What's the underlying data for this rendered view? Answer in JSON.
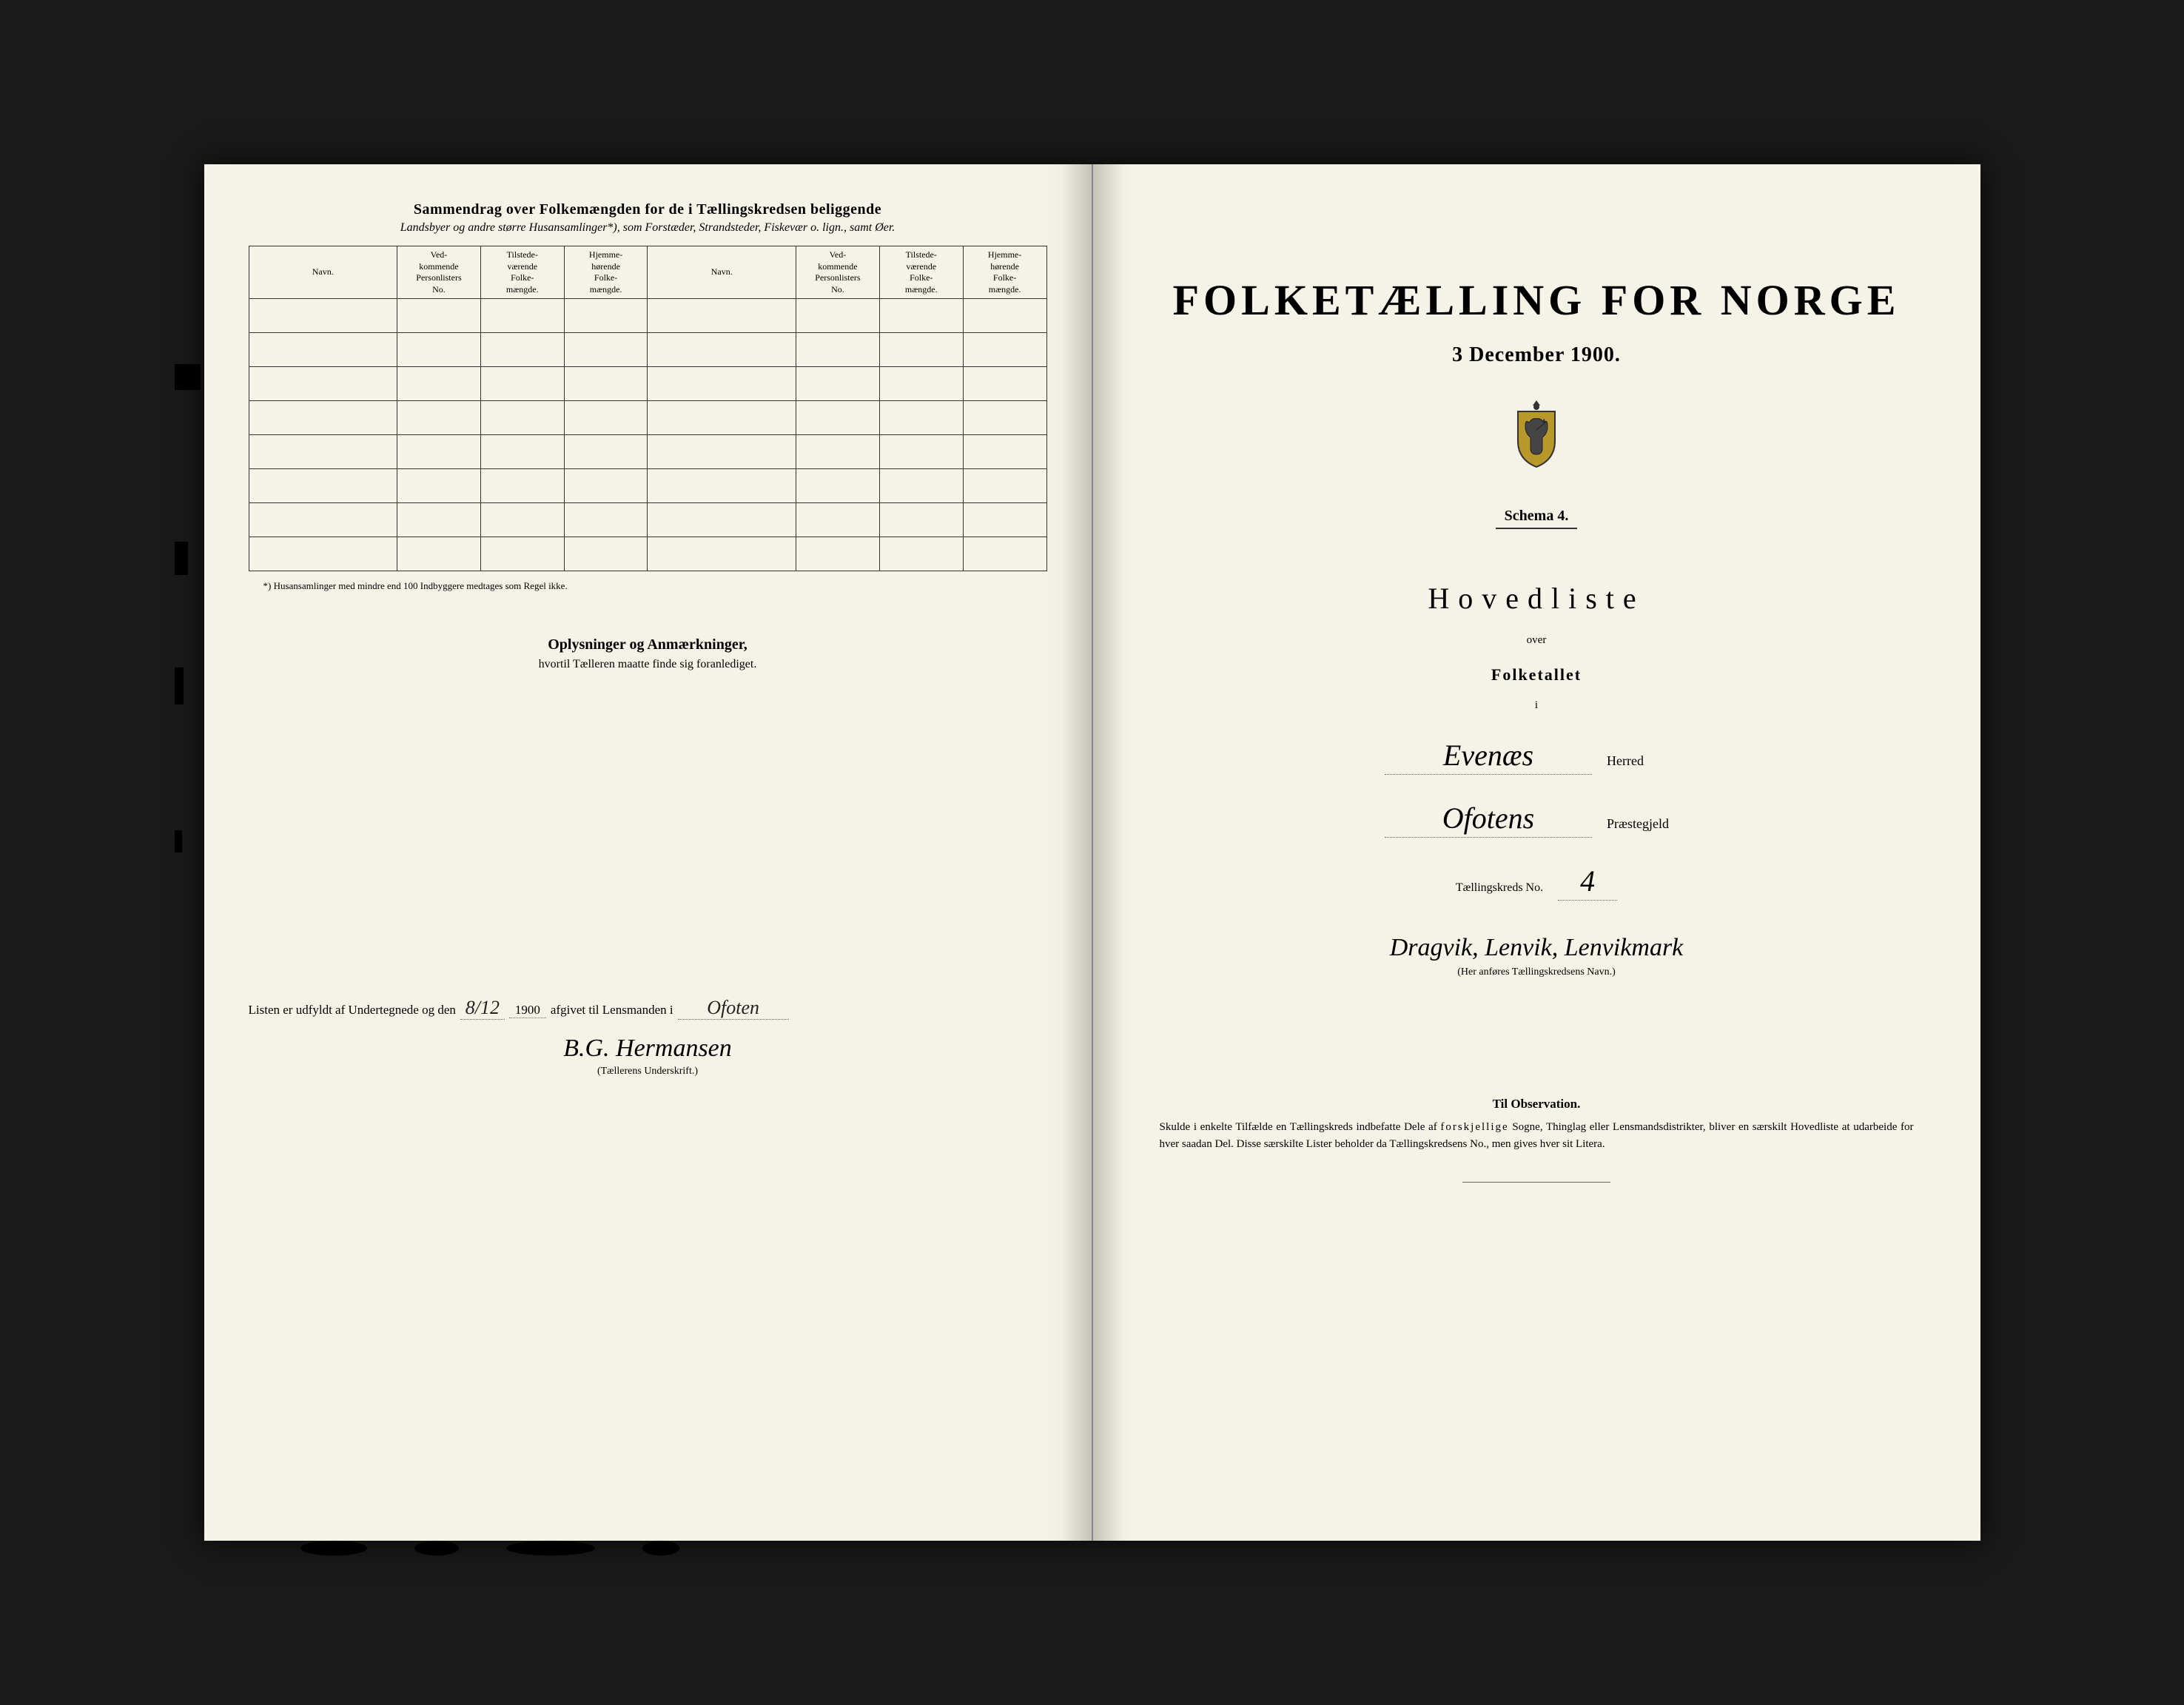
{
  "colors": {
    "page_bg": "#f5f2e8",
    "text": "#1a1a1a",
    "border": "#333333",
    "dotted": "#666666",
    "outer_bg": "#1a1a1a"
  },
  "left": {
    "header_title": "Sammendrag over Folkemængden for de i Tællingskredsen beliggende",
    "header_sub_prefix": "Landsbyer",
    "header_sub_rest": " og andre større Husansamlinger*), som Forstæder, Strandsteder, Fiskevær o. lign., samt ",
    "header_sub_oer": "Øer.",
    "table": {
      "cols": [
        "Navn.",
        "Ved-\nkommende\nPersonlisters\nNo.",
        "Tilstede-\nværende\nFolke-\nmængde.",
        "Hjemme-\nhørende\nFolke-\nmængde.",
        "Navn.",
        "Ved-\nkommende\nPersonlisters\nNo.",
        "Tilstede-\nværende\nFolke-\nmængde.",
        "Hjemme-\nhørende\nFolke-\nmængde."
      ],
      "row_count": 8
    },
    "footnote": "*) Husansamlinger med mindre end 100 Indbyggere medtages som Regel ikke.",
    "oplysninger_title": "Oplysninger og Anmærkninger,",
    "oplysninger_sub": "hvortil Tælleren maatte finde sig foranlediget.",
    "listen_prefix": "Listen er udfyldt af Undertegnede og den",
    "listen_date": "8/12",
    "listen_year": "1900",
    "listen_mid": "afgivet til Lensmanden i",
    "listen_place": "Ofoten",
    "signature": "B.G. Hermansen",
    "sig_label": "(Tællerens Underskrift.)"
  },
  "right": {
    "main_title": "FOLKETÆLLING FOR NORGE",
    "date": "3 December 1900.",
    "schema": "Schema 4.",
    "hovedliste": "Hovedliste",
    "over": "over",
    "folketallet": "Folketallet",
    "i": "i",
    "herred_value": "Evenæs",
    "herred_label": "Herred",
    "praestegjeld_value": "Ofotens",
    "praestegjeld_label": "Præstegjeld",
    "kreds_label": "Tællingskreds No.",
    "kreds_no": "4",
    "kreds_name": "Dragvik, Lenvik, Lenvikmark",
    "kreds_caption": "(Her anføres Tællingskredsens Navn.)",
    "obs_title": "Til Observation.",
    "obs_text_1": "Skulde i enkelte Tilfælde en Tællingskreds indbefatte Dele af ",
    "obs_text_spaced": "forskjellige",
    "obs_text_2": " Sogne, Thinglag eller Lensmandsdistrikter, bliver en særskilt Hovedliste at udarbeide for hver saadan Del. Disse særskilte Lister beholder da Tællingskredsens No., men gives hver sit Litera."
  }
}
